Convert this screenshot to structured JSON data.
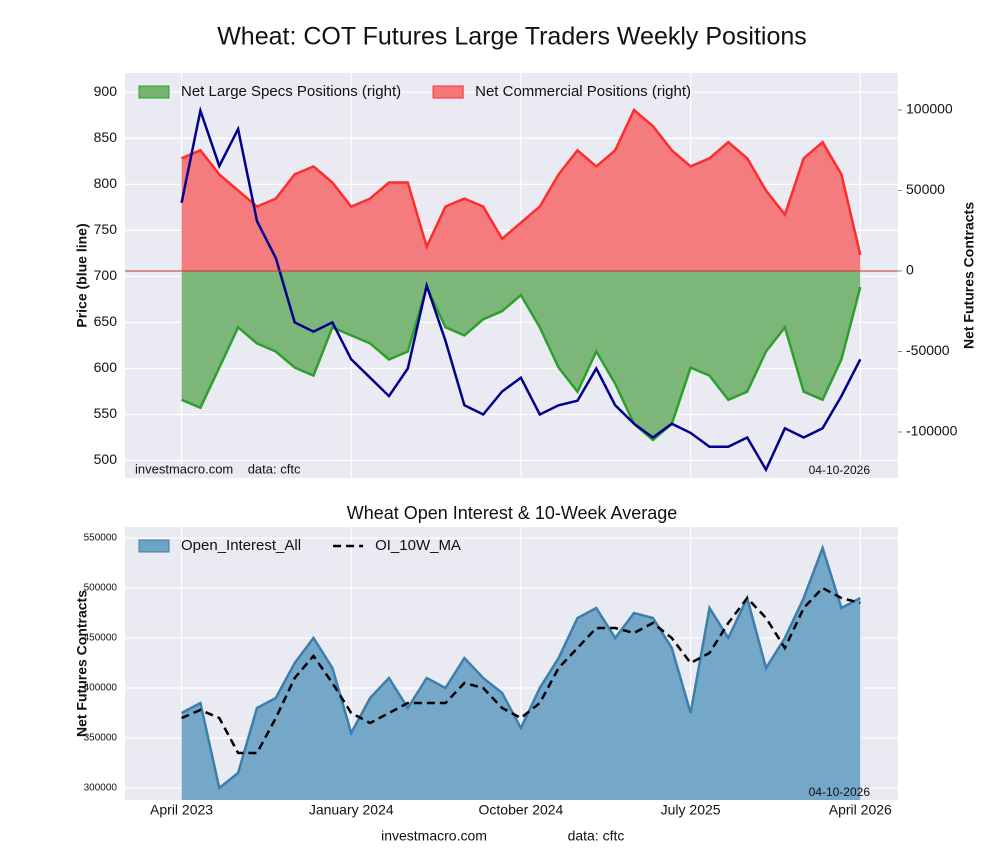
{
  "chart_data": [
    {
      "type": "area",
      "title": "Wheat: COT Futures Large Traders Weekly Positions",
      "ylabel": "Price (blue line)",
      "y2label": "Net Futures Contracts",
      "source_note": "investmacro.com    data: cftc",
      "date_note": "04-10-2026",
      "x": [
        "2023-04",
        "2023-05",
        "2023-06",
        "2023-07",
        "2023-08",
        "2023-09",
        "2023-10",
        "2023-11",
        "2023-12",
        "2024-01",
        "2024-02",
        "2024-03",
        "2024-04",
        "2024-05",
        "2024-06",
        "2024-07",
        "2024-08",
        "2024-09",
        "2024-10",
        "2024-11",
        "2024-12",
        "2025-01",
        "2025-02",
        "2025-03",
        "2025-04",
        "2025-05",
        "2025-06",
        "2025-07",
        "2025-08",
        "2025-09",
        "2025-10",
        "2025-11",
        "2025-12",
        "2026-01",
        "2026-02",
        "2026-03",
        "2026-04"
      ],
      "xlim": [
        "2023-01",
        "2026-06"
      ],
      "ylim": [
        481,
        921
      ],
      "yticks": [
        500,
        550,
        600,
        650,
        700,
        750,
        800,
        850,
        900
      ],
      "y2lim": [
        -128600,
        123000
      ],
      "y2ticks": [
        -100000,
        -50000,
        0,
        50000,
        100000
      ],
      "grid": true,
      "legend": "upper left",
      "series": [
        {
          "name": "Net Large Specs Positions (right)",
          "kind": "area",
          "axis": "y2",
          "color": "#2ca02c",
          "fill": "#77b372",
          "values": [
            -80000,
            -85000,
            -60000,
            -35000,
            -45000,
            -50000,
            -60000,
            -65000,
            -35000,
            -40000,
            -45000,
            -55000,
            -50000,
            -10000,
            -35000,
            -40000,
            -30000,
            -25000,
            -15000,
            -35000,
            -60000,
            -75000,
            -50000,
            -70000,
            -95000,
            -105000,
            -95000,
            -60000,
            -65000,
            -80000,
            -75000,
            -50000,
            -35000,
            -75000,
            -80000,
            -55000,
            -10000
          ]
        },
        {
          "name": "Net Commercial Positions (right)",
          "kind": "area",
          "axis": "y2",
          "color": "#ff2c2c",
          "fill": "#f47677",
          "values": [
            70000,
            75000,
            60000,
            50000,
            40000,
            45000,
            60000,
            65000,
            55000,
            40000,
            45000,
            55000,
            55000,
            15000,
            40000,
            45000,
            40000,
            20000,
            30000,
            40000,
            60000,
            75000,
            65000,
            75000,
            100000,
            90000,
            75000,
            65000,
            70000,
            80000,
            70000,
            50000,
            35000,
            70000,
            80000,
            60000,
            10000
          ]
        },
        {
          "kind": "line",
          "axis": "y",
          "color": "#00008b",
          "values": [
            780,
            880,
            820,
            860,
            760,
            720,
            650,
            640,
            650,
            610,
            590,
            570,
            600,
            690,
            630,
            560,
            550,
            575,
            590,
            550,
            560,
            565,
            600,
            560,
            540,
            525,
            540,
            530,
            515,
            515,
            525,
            490,
            535,
            525,
            535,
            570,
            610
          ]
        }
      ]
    },
    {
      "type": "area",
      "title": "Wheat Open Interest & 10-Week Average",
      "ylabel": "Net Futures Contracts",
      "date_note": "04-10-2026",
      "footer_site": "investmacro.com",
      "footer_data": "data: cftc",
      "x": [
        "2023-04",
        "2023-05",
        "2023-06",
        "2023-07",
        "2023-08",
        "2023-09",
        "2023-10",
        "2023-11",
        "2023-12",
        "2024-01",
        "2024-02",
        "2024-03",
        "2024-04",
        "2024-05",
        "2024-06",
        "2024-07",
        "2024-08",
        "2024-09",
        "2024-10",
        "2024-11",
        "2024-12",
        "2025-01",
        "2025-02",
        "2025-03",
        "2025-04",
        "2025-05",
        "2025-06",
        "2025-07",
        "2025-08",
        "2025-09",
        "2025-10",
        "2025-11",
        "2025-12",
        "2026-01",
        "2026-02",
        "2026-03",
        "2026-04"
      ],
      "xlim": [
        "2023-01",
        "2026-06"
      ],
      "xticks": [
        {
          "value": "2023-04",
          "label": "April 2023"
        },
        {
          "value": "2024-01",
          "label": "January 2024"
        },
        {
          "value": "2024-10",
          "label": "October 2024"
        },
        {
          "value": "2025-07",
          "label": "July 2025"
        },
        {
          "value": "2026-04",
          "label": "April 2026"
        }
      ],
      "ylim": [
        288000,
        561000
      ],
      "yticks": [
        300000,
        350000,
        400000,
        450000,
        500000,
        550000
      ],
      "grid": true,
      "legend": "upper left",
      "series": [
        {
          "name": "Open_Interest_All",
          "kind": "area",
          "axis": "y",
          "color": "#3d7eab",
          "fill": "#6fa3c6",
          "values": [
            375000,
            385000,
            300000,
            315000,
            380000,
            390000,
            425000,
            450000,
            420000,
            355000,
            390000,
            410000,
            380000,
            410000,
            400000,
            430000,
            410000,
            395000,
            360000,
            400000,
            430000,
            470000,
            480000,
            450000,
            475000,
            470000,
            440000,
            375000,
            480000,
            450000,
            490000,
            420000,
            450000,
            490000,
            540000,
            480000,
            490000
          ]
        },
        {
          "name": "OI_10W_MA",
          "kind": "line",
          "dash": true,
          "axis": "y",
          "color": "#000000",
          "values": [
            370000,
            378000,
            370000,
            335000,
            335000,
            370000,
            410000,
            432000,
            405000,
            375000,
            365000,
            375000,
            385000,
            385000,
            385000,
            405000,
            400000,
            380000,
            370000,
            385000,
            420000,
            440000,
            460000,
            460000,
            455000,
            465000,
            450000,
            425000,
            435000,
            465000,
            490000,
            470000,
            440000,
            480000,
            500000,
            490000,
            485000
          ]
        }
      ]
    }
  ]
}
